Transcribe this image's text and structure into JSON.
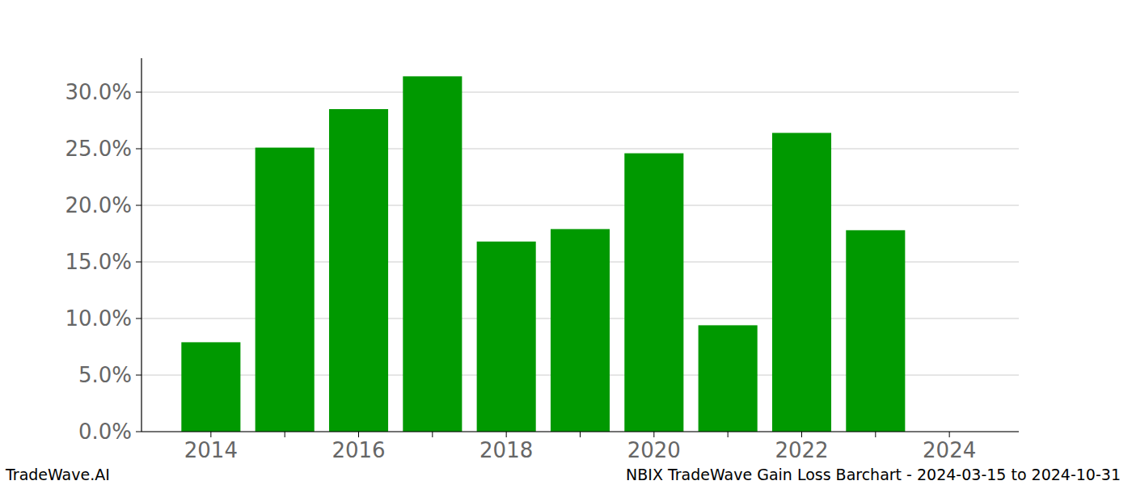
{
  "chart_data": {
    "type": "bar",
    "title": "NBIX TradeWave Gain Loss Barchart - 2024-03-15 to 2024-10-31",
    "annotations": [
      "TradeWave.AI"
    ],
    "categories": [
      "2014",
      null,
      "2016",
      null,
      "2018",
      null,
      "2020",
      null,
      "2022",
      null,
      "2024"
    ],
    "values": [
      7.9,
      25.1,
      28.5,
      31.4,
      16.8,
      17.9,
      24.6,
      9.4,
      26.4,
      17.8,
      0
    ],
    "color": "#009900",
    "ylim": [
      0,
      33
    ],
    "yticks": [
      {
        "value": 0,
        "label": "0.0%"
      },
      {
        "value": 5,
        "label": "5.0%"
      },
      {
        "value": 10,
        "label": "10.0%"
      },
      {
        "value": 15,
        "label": "15.0%"
      },
      {
        "value": 20,
        "label": "20.0%"
      },
      {
        "value": 25,
        "label": "25.0%"
      },
      {
        "value": 30,
        "label": "30.0%"
      }
    ],
    "grid": true
  }
}
